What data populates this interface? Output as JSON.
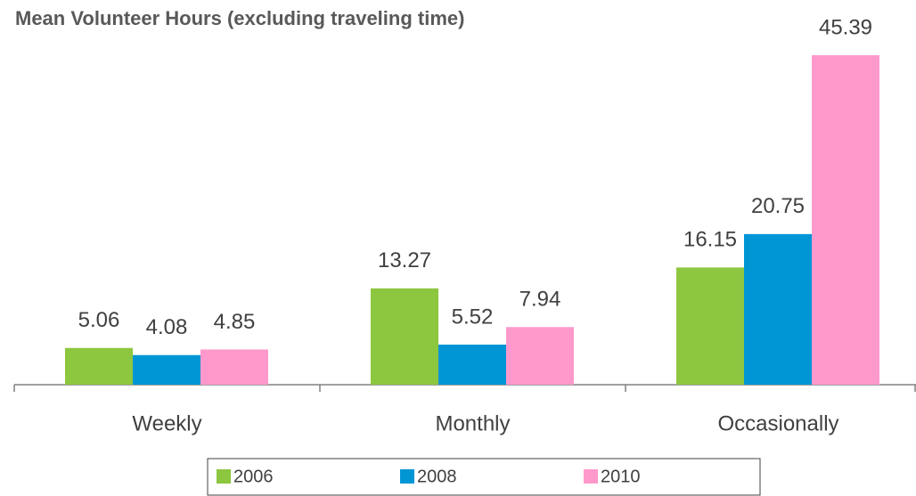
{
  "chart_data": {
    "type": "bar",
    "title": "Mean Volunteer Hours (excluding traveling time)",
    "categories": [
      "Weekly",
      "Monthly",
      "Occasionally"
    ],
    "series": [
      {
        "name": "2006",
        "color": "#8dc63f",
        "values": [
          5.06,
          13.27,
          16.15
        ]
      },
      {
        "name": "2008",
        "color": "#0096d6",
        "values": [
          4.08,
          5.52,
          20.75
        ]
      },
      {
        "name": "2010",
        "color": "#ff99cc",
        "values": [
          4.85,
          7.94,
          45.39
        ]
      }
    ],
    "legend": "bottom"
  }
}
